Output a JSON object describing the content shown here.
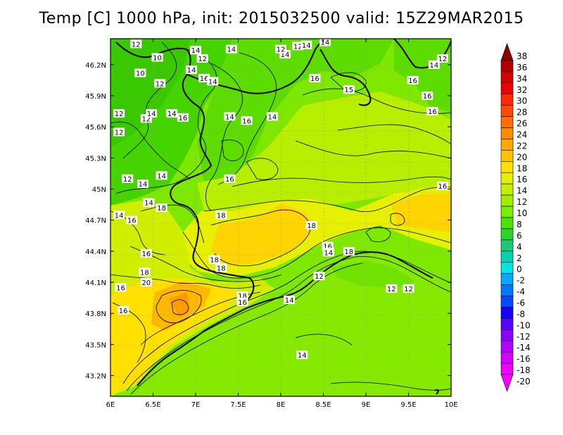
{
  "title": "Temp [C] 1000 hPa, init: 2015032500 valid: 15Z29MAR2015",
  "map": {
    "lat_ticks": [
      "46.2N",
      "45.9N",
      "45.6N",
      "45.3N",
      "45N",
      "44.7N",
      "44.4N",
      "44.1N",
      "43.8N",
      "43.5N",
      "43.2N"
    ],
    "lon_ticks": [
      "6E",
      "6.5E",
      "7E",
      "7.5E",
      "8E",
      "8.5E",
      "9E",
      "9.5E",
      "10E"
    ],
    "contour_labels": [
      {
        "t": "12",
        "lon": 6.3,
        "lat": 46.4
      },
      {
        "t": "10",
        "lon": 6.55,
        "lat": 46.27
      },
      {
        "t": "10",
        "lon": 6.35,
        "lat": 46.12
      },
      {
        "t": "12",
        "lon": 6.58,
        "lat": 46.02
      },
      {
        "t": "14",
        "lon": 7.0,
        "lat": 46.34
      },
      {
        "t": "12",
        "lon": 7.08,
        "lat": 46.26
      },
      {
        "t": "14",
        "lon": 6.95,
        "lat": 46.15
      },
      {
        "t": "16",
        "lon": 7.1,
        "lat": 46.07
      },
      {
        "t": "14",
        "lon": 7.2,
        "lat": 46.04
      },
      {
        "t": "14",
        "lon": 7.42,
        "lat": 46.35
      },
      {
        "t": "14",
        "lon": 8.05,
        "lat": 46.3
      },
      {
        "t": "12",
        "lon": 8.2,
        "lat": 46.38
      },
      {
        "t": "14",
        "lon": 8.3,
        "lat": 46.39
      },
      {
        "t": "16",
        "lon": 8.4,
        "lat": 46.07
      },
      {
        "t": "15",
        "lon": 8.8,
        "lat": 45.96
      },
      {
        "t": "12",
        "lon": 6.1,
        "lat": 45.73
      },
      {
        "t": "12",
        "lon": 6.42,
        "lat": 45.68
      },
      {
        "t": "14",
        "lon": 6.48,
        "lat": 45.73
      },
      {
        "t": "12",
        "lon": 6.1,
        "lat": 45.55
      },
      {
        "t": "14",
        "lon": 6.72,
        "lat": 45.73
      },
      {
        "t": "16",
        "lon": 6.85,
        "lat": 45.69
      },
      {
        "t": "14",
        "lon": 7.4,
        "lat": 45.7
      },
      {
        "t": "16",
        "lon": 7.6,
        "lat": 45.66
      },
      {
        "t": "14",
        "lon": 7.9,
        "lat": 45.7
      },
      {
        "t": "12",
        "lon": 6.2,
        "lat": 45.1
      },
      {
        "t": "14",
        "lon": 6.38,
        "lat": 45.05
      },
      {
        "t": "14",
        "lon": 6.6,
        "lat": 45.13
      },
      {
        "t": "16",
        "lon": 7.4,
        "lat": 45.1
      },
      {
        "t": "14",
        "lon": 6.45,
        "lat": 44.87
      },
      {
        "t": "18",
        "lon": 6.6,
        "lat": 44.82
      },
      {
        "t": "14",
        "lon": 6.1,
        "lat": 44.75
      },
      {
        "t": "16",
        "lon": 6.25,
        "lat": 44.7
      },
      {
        "t": "18",
        "lon": 7.3,
        "lat": 44.75
      },
      {
        "t": "16",
        "lon": 6.42,
        "lat": 44.38
      },
      {
        "t": "18",
        "lon": 6.4,
        "lat": 44.2
      },
      {
        "t": "20",
        "lon": 6.42,
        "lat": 44.1
      },
      {
        "t": "16",
        "lon": 6.12,
        "lat": 44.05
      },
      {
        "t": "16",
        "lon": 6.15,
        "lat": 43.83
      },
      {
        "t": "18",
        "lon": 7.22,
        "lat": 44.32
      },
      {
        "t": "18",
        "lon": 7.3,
        "lat": 44.24
      },
      {
        "t": "18",
        "lon": 7.55,
        "lat": 43.97
      },
      {
        "t": "16",
        "lon": 7.55,
        "lat": 43.91
      },
      {
        "t": "14",
        "lon": 8.1,
        "lat": 43.93
      },
      {
        "t": "12",
        "lon": 8.45,
        "lat": 44.16
      },
      {
        "t": "18",
        "lon": 8.36,
        "lat": 44.65
      },
      {
        "t": "16",
        "lon": 8.55,
        "lat": 44.45
      },
      {
        "t": "14",
        "lon": 8.56,
        "lat": 44.39
      },
      {
        "t": "18",
        "lon": 8.8,
        "lat": 44.4
      },
      {
        "t": "12",
        "lon": 9.3,
        "lat": 44.04
      },
      {
        "t": "12",
        "lon": 9.5,
        "lat": 44.04
      },
      {
        "t": "16",
        "lon": 9.9,
        "lat": 45.03
      },
      {
        "t": "16",
        "lon": 9.78,
        "lat": 45.75
      },
      {
        "t": "16",
        "lon": 9.55,
        "lat": 46.05
      },
      {
        "t": "16",
        "lon": 9.72,
        "lat": 45.9
      },
      {
        "t": "12",
        "lon": 9.9,
        "lat": 46.26
      },
      {
        "t": "14",
        "lon": 9.8,
        "lat": 46.2
      },
      {
        "t": "14",
        "lon": 8.52,
        "lat": 46.42
      },
      {
        "t": "14",
        "lon": 8.25,
        "lat": 43.4
      },
      {
        "t": "12",
        "lon": 8.0,
        "lat": 46.35
      }
    ]
  },
  "colorbar": {
    "labels": [
      "38",
      "36",
      "34",
      "32",
      "30",
      "28",
      "26",
      "24",
      "22",
      "20",
      "18",
      "16",
      "14",
      "12",
      "10",
      "8",
      "6",
      "4",
      "2",
      "0",
      "-2",
      "-4",
      "-6",
      "-8",
      "-10",
      "-12",
      "-14",
      "-16",
      "-18",
      "-20"
    ],
    "colors": [
      "#8a0000",
      "#b00000",
      "#d40000",
      "#f00000",
      "#ff2a00",
      "#ff4a00",
      "#ff6e00",
      "#ff8c00",
      "#ffa800",
      "#ffc400",
      "#ffe000",
      "#e8f000",
      "#c4f000",
      "#9ef000",
      "#78f000",
      "#4ae400",
      "#2ad428",
      "#1cc878",
      "#00d2b4",
      "#00e6e6",
      "#00aaff",
      "#0078ff",
      "#004aff",
      "#1400ff",
      "#5a00ff",
      "#8c00ff",
      "#b400ff",
      "#d400ff",
      "#f000ff",
      "#ff00ff"
    ]
  }
}
